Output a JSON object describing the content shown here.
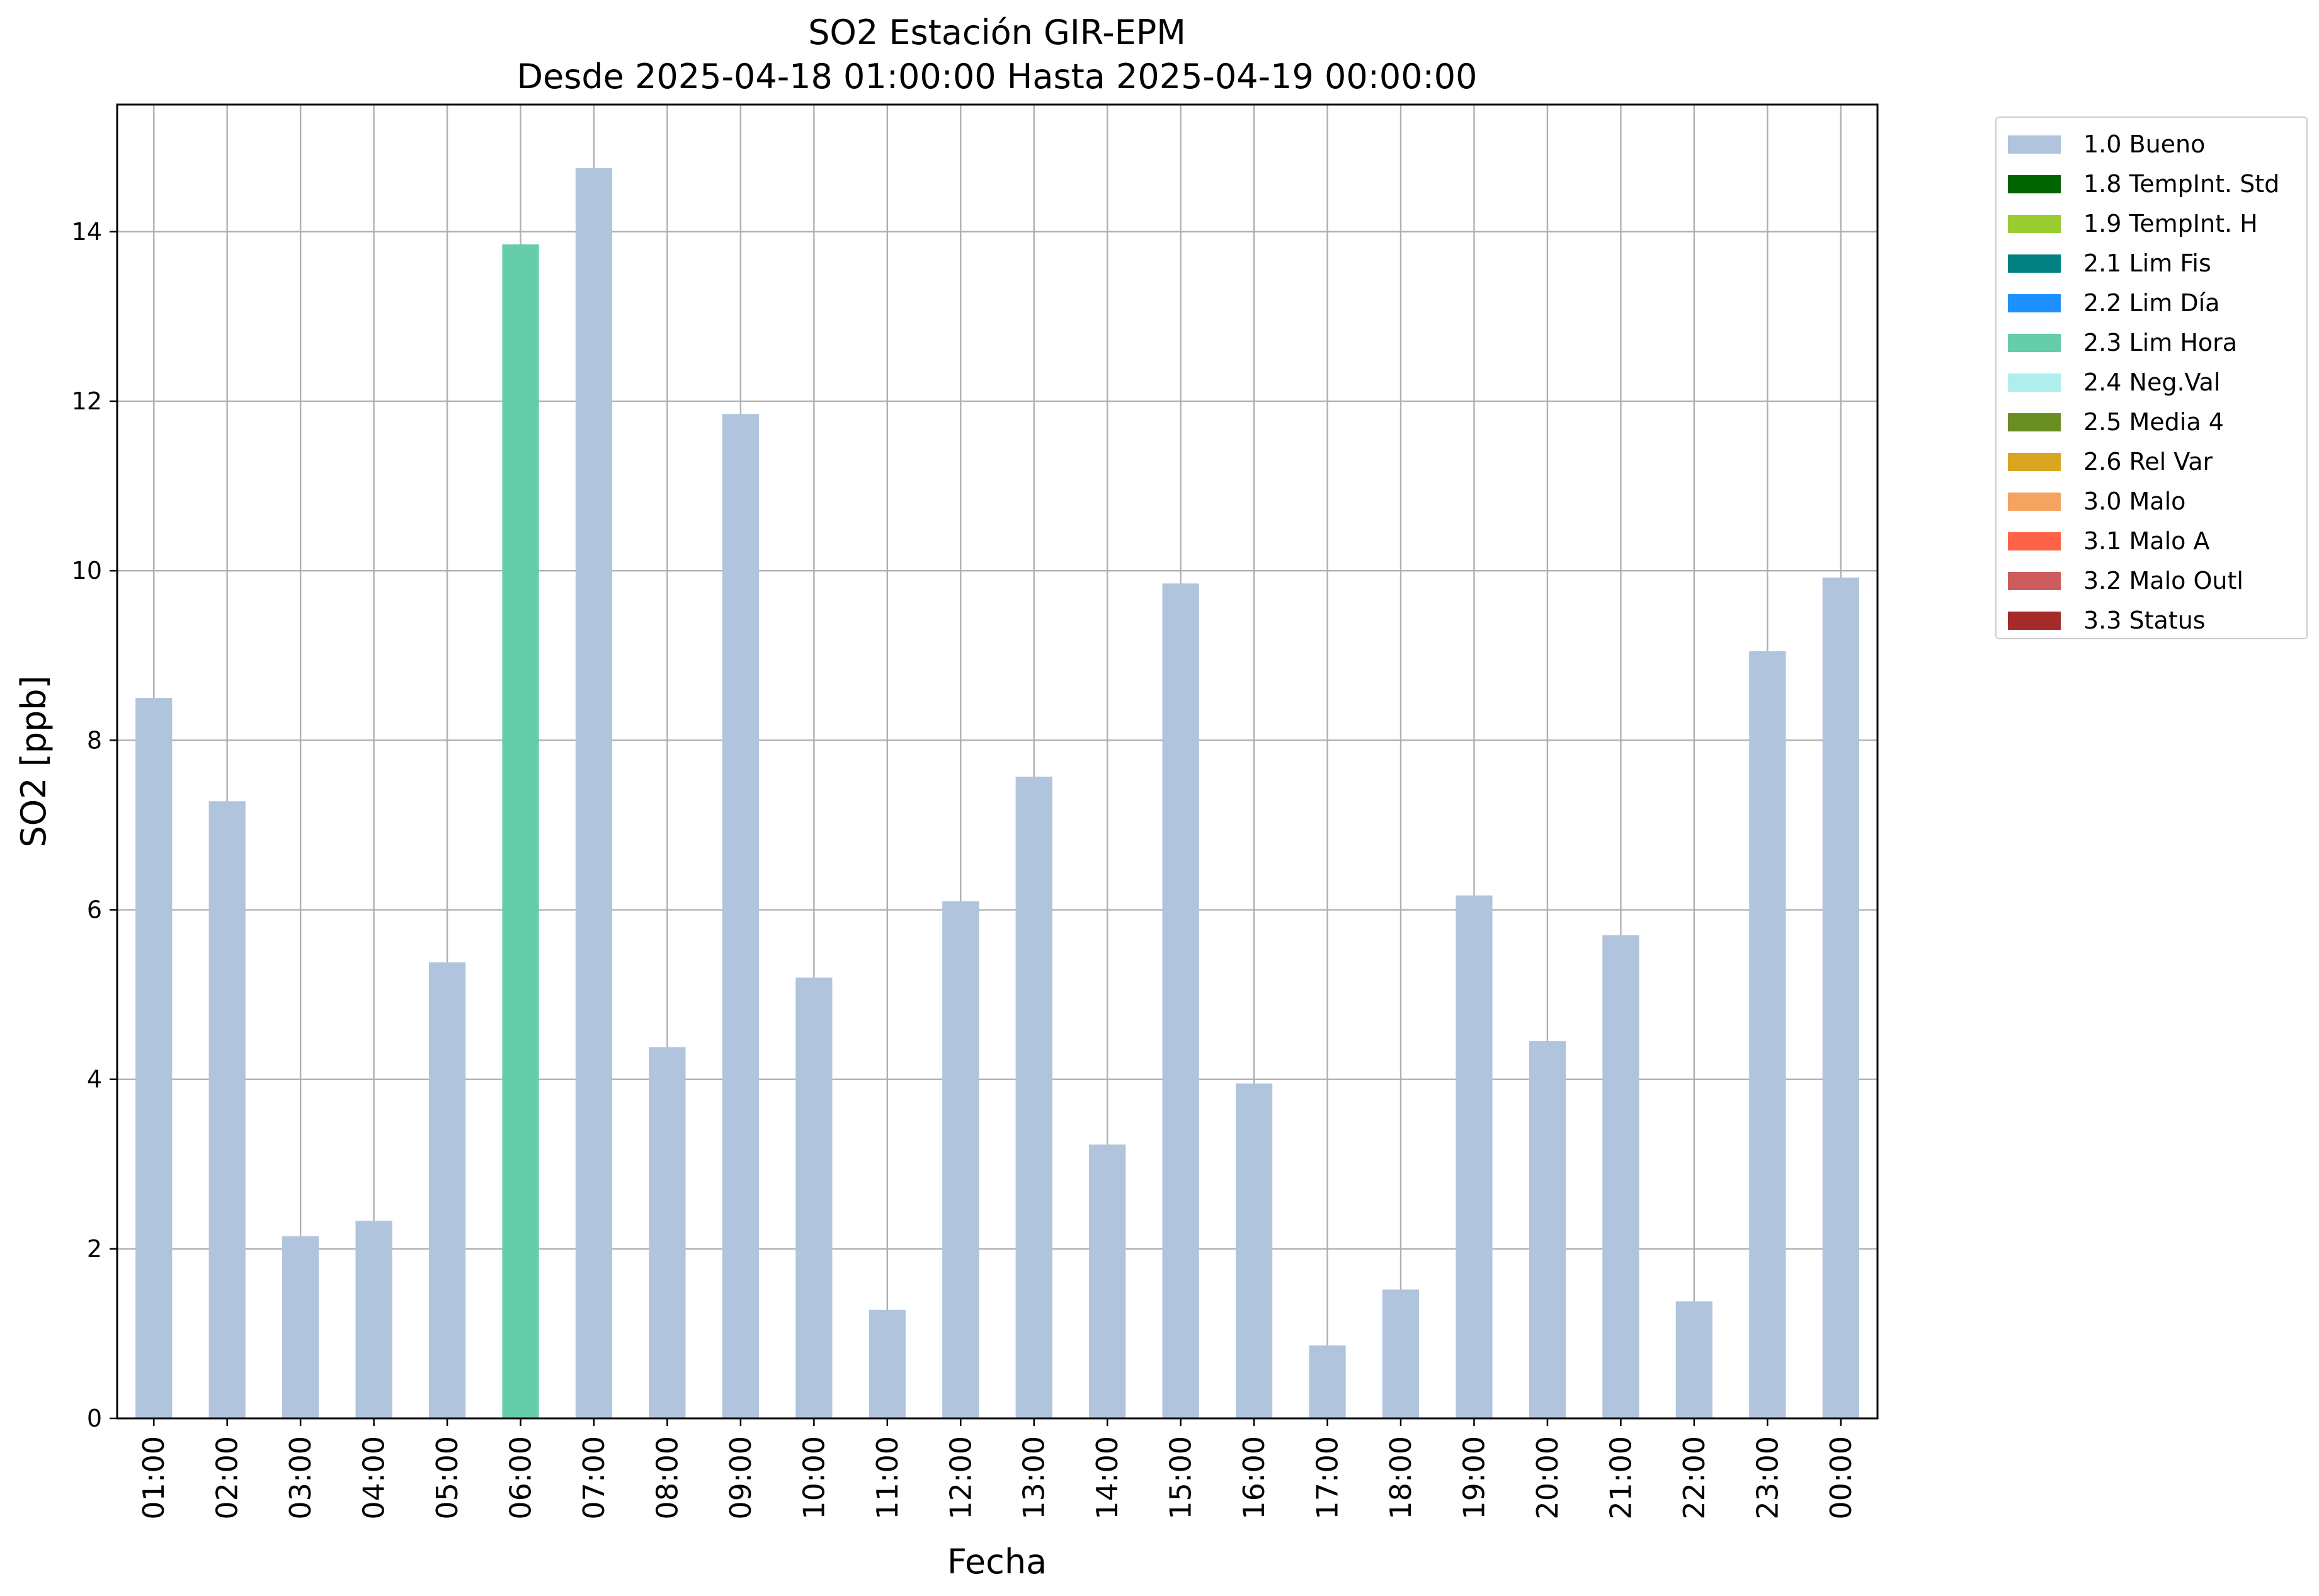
{
  "chart_data": {
    "type": "bar",
    "title": "SO2 Estación GIR-EPM",
    "subtitle": "Desde 2025-04-18 01:00:00 Hasta 2025-04-19 00:00:00",
    "xlabel": "Fecha",
    "ylabel": "SO2 [ppb]",
    "ylim": [
      0,
      15.5
    ],
    "yticks": [
      0,
      2,
      4,
      6,
      8,
      10,
      12,
      14
    ],
    "grid": true,
    "legend_position": "outside-top-right",
    "categories": [
      "01:00",
      "02:00",
      "03:00",
      "04:00",
      "05:00",
      "06:00",
      "07:00",
      "08:00",
      "09:00",
      "10:00",
      "11:00",
      "12:00",
      "13:00",
      "14:00",
      "15:00",
      "16:00",
      "17:00",
      "18:00",
      "19:00",
      "20:00",
      "21:00",
      "22:00",
      "23:00",
      "00:00"
    ],
    "values": [
      8.5,
      7.28,
      2.15,
      2.33,
      5.38,
      13.85,
      14.75,
      4.38,
      11.85,
      5.2,
      1.28,
      6.1,
      7.57,
      3.23,
      9.85,
      3.95,
      0.86,
      1.52,
      6.17,
      4.45,
      5.7,
      1.38,
      9.05,
      9.92
    ],
    "flags": [
      "1.0 Bueno",
      "1.0 Bueno",
      "1.0 Bueno",
      "1.0 Bueno",
      "1.0 Bueno",
      "2.3 Lim Hora",
      "1.0 Bueno",
      "1.0 Bueno",
      "1.0 Bueno",
      "1.0 Bueno",
      "1.0 Bueno",
      "1.0 Bueno",
      "1.0 Bueno",
      "1.0 Bueno",
      "1.0 Bueno",
      "1.0 Bueno",
      "1.0 Bueno",
      "1.0 Bueno",
      "1.0 Bueno",
      "1.0 Bueno",
      "1.0 Bueno",
      "1.0 Bueno",
      "1.0 Bueno",
      "1.0 Bueno"
    ],
    "legend": [
      {
        "label": "1.0 Bueno",
        "color": "#b0c4de"
      },
      {
        "label": "1.8 TempInt. Std",
        "color": "#006400"
      },
      {
        "label": "1.9 TempInt. H",
        "color": "#9acd32"
      },
      {
        "label": "2.1 Lim Fis",
        "color": "#008080"
      },
      {
        "label": "2.2 Lim Día",
        "color": "#1e90ff"
      },
      {
        "label": "2.3 Lim Hora",
        "color": "#66cdaa"
      },
      {
        "label": "2.4 Neg.Val",
        "color": "#afeeee"
      },
      {
        "label": "2.5 Media 4",
        "color": "#6b8e23"
      },
      {
        "label": "2.6 Rel Var",
        "color": "#daa520"
      },
      {
        "label": "3.0 Malo",
        "color": "#f4a460"
      },
      {
        "label": "3.1 Malo A",
        "color": "#ff6347"
      },
      {
        "label": "3.2 Malo Outl",
        "color": "#cd5c5c"
      },
      {
        "label": "3.3 Status",
        "color": "#a52a2a"
      }
    ]
  }
}
